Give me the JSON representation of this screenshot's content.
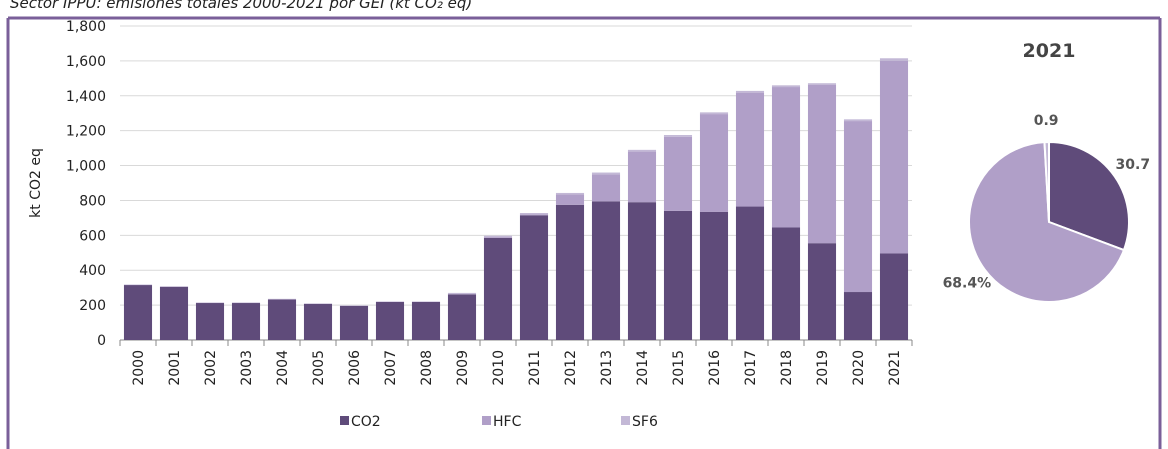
{
  "chart_data": [
    {
      "type": "bar",
      "stacked": true,
      "title": "Sector IPPU: emisiones totales 2000-2021 por GEI (kt CO₂ eq)",
      "y_label": "kt CO2 eq",
      "categories": [
        "2000",
        "2001",
        "2002",
        "2003",
        "2004",
        "2005",
        "2006",
        "2007",
        "2008",
        "2009",
        "2010",
        "2011",
        "2012",
        "2013",
        "2014",
        "2015",
        "2016",
        "2017",
        "2018",
        "2019",
        "2020",
        "2021"
      ],
      "series": [
        {
          "name": "CO2",
          "color": "#5f4b7a",
          "values": [
            315,
            305,
            212,
            212,
            232,
            207,
            195,
            218,
            218,
            262,
            585,
            715,
            775,
            795,
            790,
            740,
            735,
            765,
            645,
            555,
            275,
            496
          ]
        },
        {
          "name": "HFC",
          "color": "#b09fc8",
          "values": [
            0,
            0,
            0,
            0,
            0,
            0,
            0,
            0,
            0,
            0,
            5,
            5,
            60,
            155,
            290,
            425,
            560,
            653,
            805,
            907,
            980,
            1105
          ]
        },
        {
          "name": "SF6",
          "color": "#c3b8d6",
          "values": [
            3,
            3,
            3,
            3,
            4,
            3,
            3,
            3,
            3,
            8,
            8,
            8,
            8,
            10,
            10,
            10,
            10,
            10,
            10,
            10,
            10,
            14
          ]
        }
      ],
      "ylim": [
        0,
        1800
      ],
      "yticks": [
        0,
        200,
        400,
        600,
        800,
        {
          "value": 1000,
          "label": "1,000"
        },
        {
          "value": 1200,
          "label": "1,200"
        },
        {
          "value": 1400,
          "label": "1,400"
        },
        {
          "value": 1600,
          "label": "1,600"
        },
        {
          "value": 1800,
          "label": "1,800"
        }
      ],
      "grid": true,
      "legend": "bottom"
    },
    {
      "type": "pie",
      "title": "2021",
      "values": [
        30.7,
        68.4,
        0.9
      ],
      "value_labels": [
        "30.7",
        "68.4%",
        "0.9"
      ],
      "colors": [
        "#5f4b7a",
        "#b09fc8",
        "#c3b8d6"
      ]
    }
  ]
}
